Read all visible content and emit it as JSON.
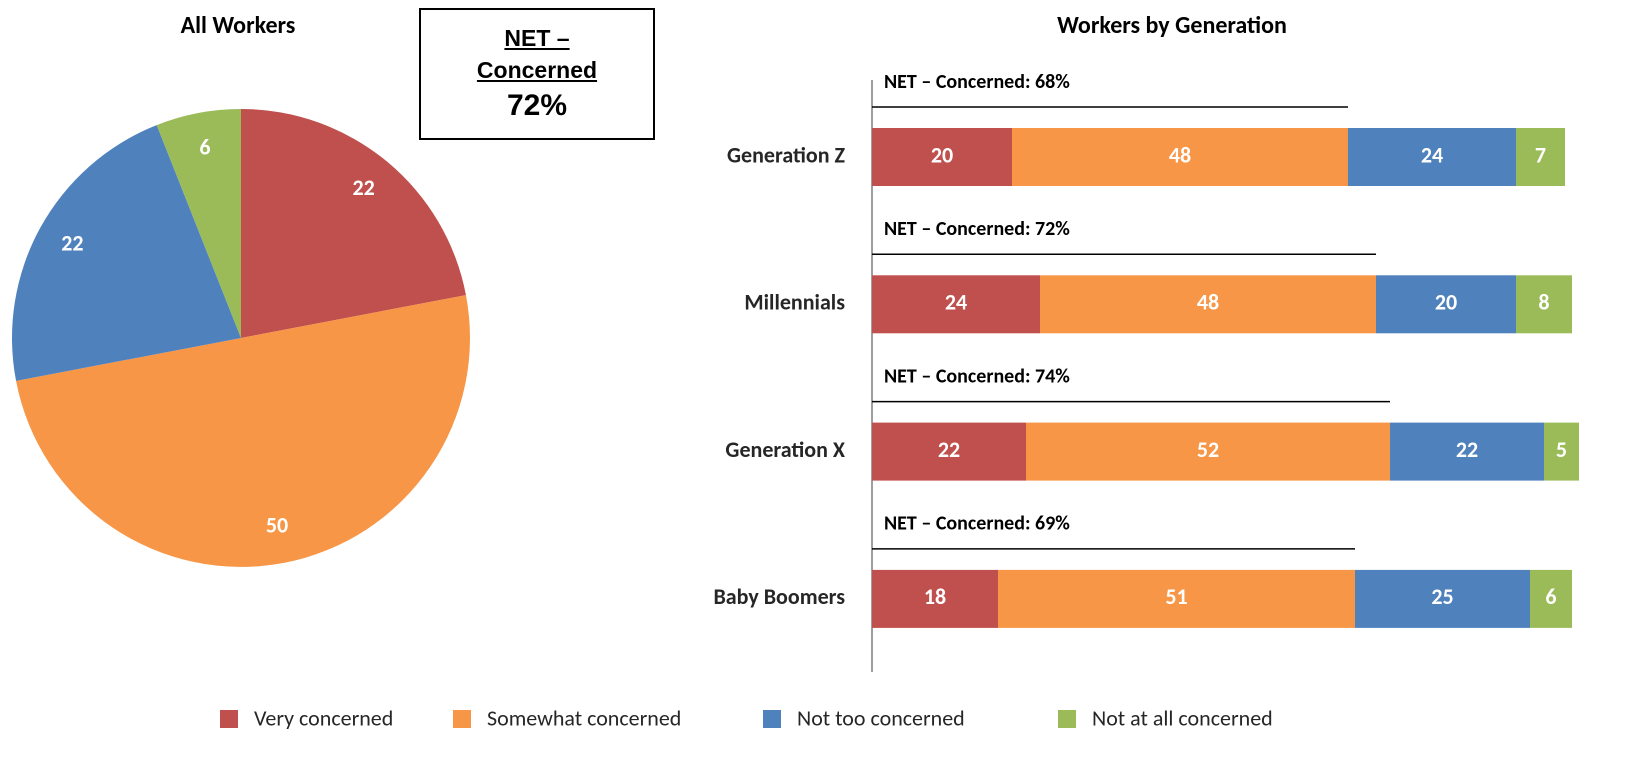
{
  "chart_data": [
    {
      "type": "pie",
      "title": "All Workers",
      "values": [
        22,
        50,
        22,
        6
      ],
      "colors": [
        "#c0504d",
        "#f79646",
        "#4f81bd",
        "#9bbb59"
      ],
      "annotation": {
        "title": "NET – Concerned",
        "text": "72%"
      }
    },
    {
      "type": "stacked_barh",
      "title": "Workers by Generation",
      "categories": [
        "Generation Z",
        "Millennials",
        "Generation X",
        "Baby Boomers"
      ],
      "series": [
        {
          "name": "Very concerned",
          "color": "#c0504d",
          "values": [
            20,
            24,
            22,
            18
          ]
        },
        {
          "name": "Somewhat concerned",
          "color": "#f79646",
          "values": [
            48,
            48,
            52,
            51
          ]
        },
        {
          "name": "Not too concerned",
          "color": "#4f81bd",
          "values": [
            24,
            20,
            22,
            25
          ]
        },
        {
          "name": "Not at all concerned",
          "color": "#9bbb59",
          "values": [
            7,
            8,
            5,
            6
          ]
        }
      ],
      "net_values": [
        68,
        72,
        74,
        69
      ],
      "net_labels": [
        "NET – Concerned: 68%",
        "NET – Concerned: 72%",
        "NET – Concerned: 74%",
        "NET – Concerned: 69%"
      ],
      "xlim": [
        0,
        100
      ]
    }
  ]
}
